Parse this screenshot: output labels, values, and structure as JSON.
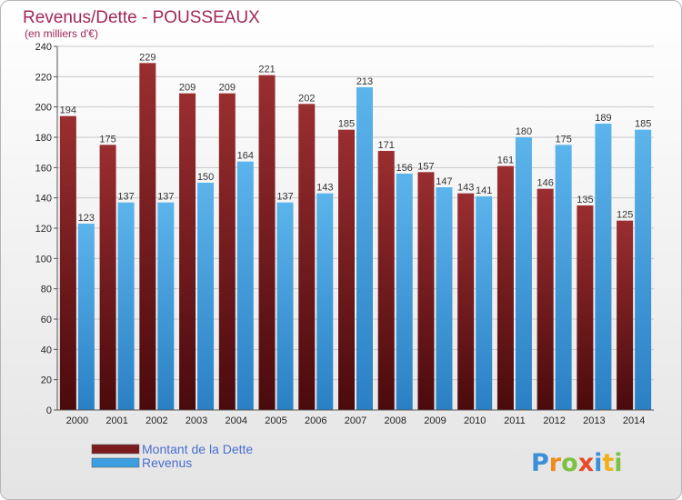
{
  "chart_data": {
    "type": "bar",
    "title": "Revenus/Dette - POUSSEAUX",
    "subtitle": "(en milliers d'€)",
    "xlabel": "",
    "ylabel": "",
    "categories": [
      "2000",
      "2001",
      "2002",
      "2003",
      "2004",
      "2005",
      "2006",
      "2007",
      "2008",
      "2009",
      "2010",
      "2011",
      "2012",
      "2013",
      "2014"
    ],
    "series": [
      {
        "name": "Montant de la Dette",
        "color": "#7a1c1e",
        "values": [
          194,
          175,
          229,
          209,
          209,
          221,
          202,
          185,
          171,
          157,
          143,
          161,
          146,
          135,
          125
        ]
      },
      {
        "name": "Revenus",
        "color": "#3c9ee0",
        "values": [
          123,
          137,
          137,
          150,
          164,
          137,
          143,
          213,
          156,
          147,
          141,
          180,
          175,
          189,
          185
        ]
      }
    ],
    "ylim": [
      0,
      240
    ],
    "yticks": [
      0,
      20,
      40,
      60,
      80,
      100,
      120,
      140,
      160,
      180,
      200,
      220,
      240
    ],
    "grid": true,
    "legend_position": "bottom-left"
  },
  "branding": {
    "logo_text": "Proxiti",
    "letters": [
      {
        "ch": "P",
        "color": "#3a8fd8"
      },
      {
        "ch": "r",
        "color": "#f08a1c"
      },
      {
        "ch": "o",
        "color": "#7cc242"
      },
      {
        "ch": "x",
        "color": "#e84a2a"
      },
      {
        "ch": "i",
        "color": "#3a8fd8"
      },
      {
        "ch": "t",
        "color": "#f0b01c"
      },
      {
        "ch": "i",
        "color": "#7cc242"
      }
    ]
  }
}
